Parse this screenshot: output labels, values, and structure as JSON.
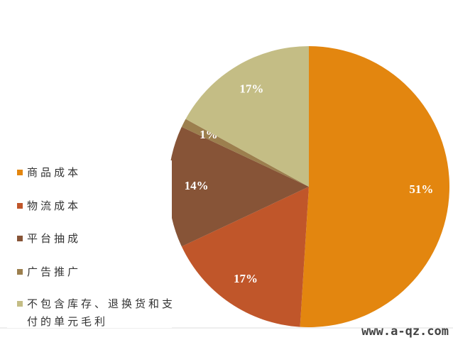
{
  "chart_data": {
    "type": "pie",
    "categories": [
      "商品成本",
      "物流成本",
      "平台抽成",
      "广告推广",
      "不包含库存、退换货和支付的单元毛利"
    ],
    "values": [
      51,
      17,
      14,
      1,
      17
    ],
    "value_labels": [
      "51%",
      "17%",
      "14%",
      "1%",
      "17%"
    ],
    "colors": [
      "#E3860F",
      "#C0562A",
      "#875437",
      "#9C7F4E",
      "#C4BD85"
    ]
  },
  "watermark": "www.a-qz.com"
}
